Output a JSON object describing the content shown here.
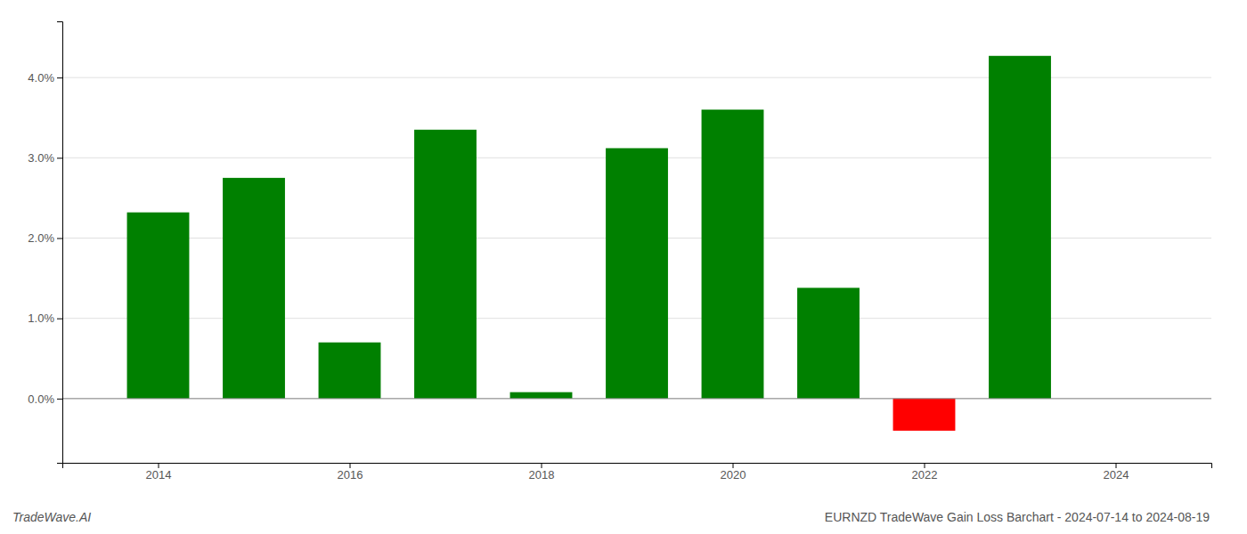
{
  "chart_data": {
    "type": "bar",
    "title": "EURNZD TradeWave Gain Loss Barchart - 2024-07-14 to 2024-08-19",
    "annotations": [
      "TradeWave.AI"
    ],
    "x": [
      2014,
      2015,
      2016,
      2017,
      2018,
      2019,
      2020,
      2021,
      2022,
      2023
    ],
    "values": [
      0.0232,
      0.0275,
      0.007,
      0.0335,
      0.0008,
      0.0312,
      0.036,
      0.0138,
      -0.004,
      0.0427
    ],
    "colors": [
      "#008000",
      "#008000",
      "#008000",
      "#008000",
      "#008000",
      "#008000",
      "#008000",
      "#008000",
      "#ff0000",
      "#008000"
    ],
    "xlim": [
      2013.0,
      2025.0
    ],
    "xticks": [
      2014,
      2016,
      2018,
      2020,
      2022,
      2024
    ],
    "ylim": [
      -0.008,
      0.047
    ],
    "yticks": [
      {
        "value": 0.0,
        "label": "0.0%"
      },
      {
        "value": 0.01,
        "label": "1.0%"
      },
      {
        "value": 0.02,
        "label": "2.0%"
      },
      {
        "value": 0.03,
        "label": "3.0%"
      },
      {
        "value": 0.04,
        "label": "4.0%"
      }
    ],
    "grid": true
  }
}
